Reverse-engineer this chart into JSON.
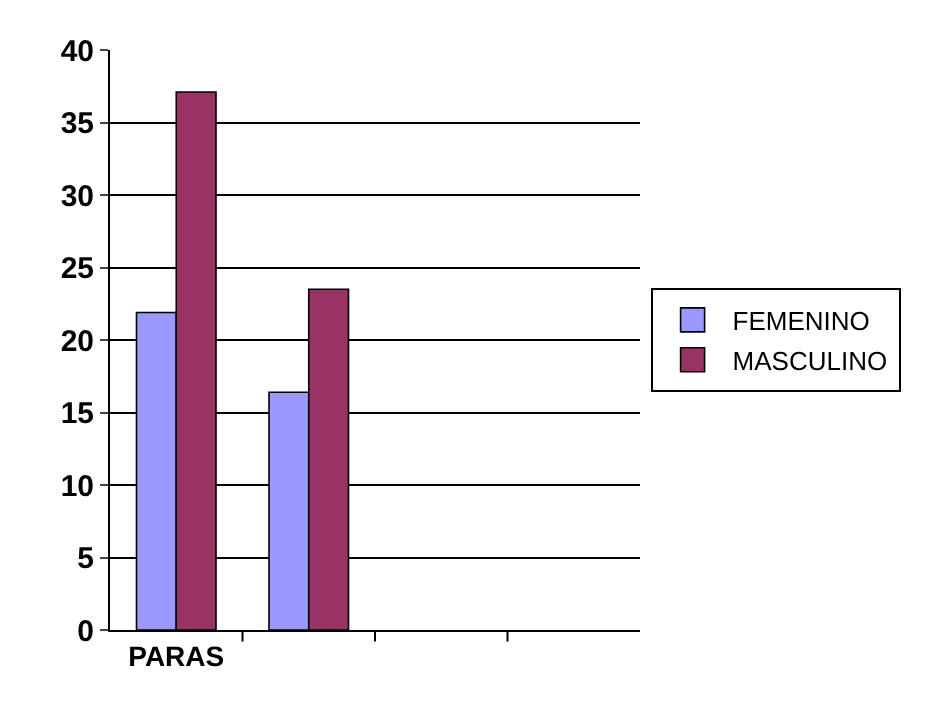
{
  "chart_data": {
    "type": "bar",
    "categories": [
      "PARAS",
      null,
      null,
      null
    ],
    "series": [
      {
        "name": "FEMENINO",
        "color": "#9999ff",
        "values": [
          21.9,
          16.4,
          null,
          null
        ]
      },
      {
        "name": "MASCULINO",
        "color": "#993366",
        "values": [
          37.1,
          23.5,
          null,
          null
        ]
      }
    ],
    "ylim": [
      0,
      40
    ],
    "yticks": [
      0,
      5,
      10,
      15,
      20,
      25,
      30,
      35,
      40
    ],
    "grid": "y",
    "legend": "right"
  }
}
